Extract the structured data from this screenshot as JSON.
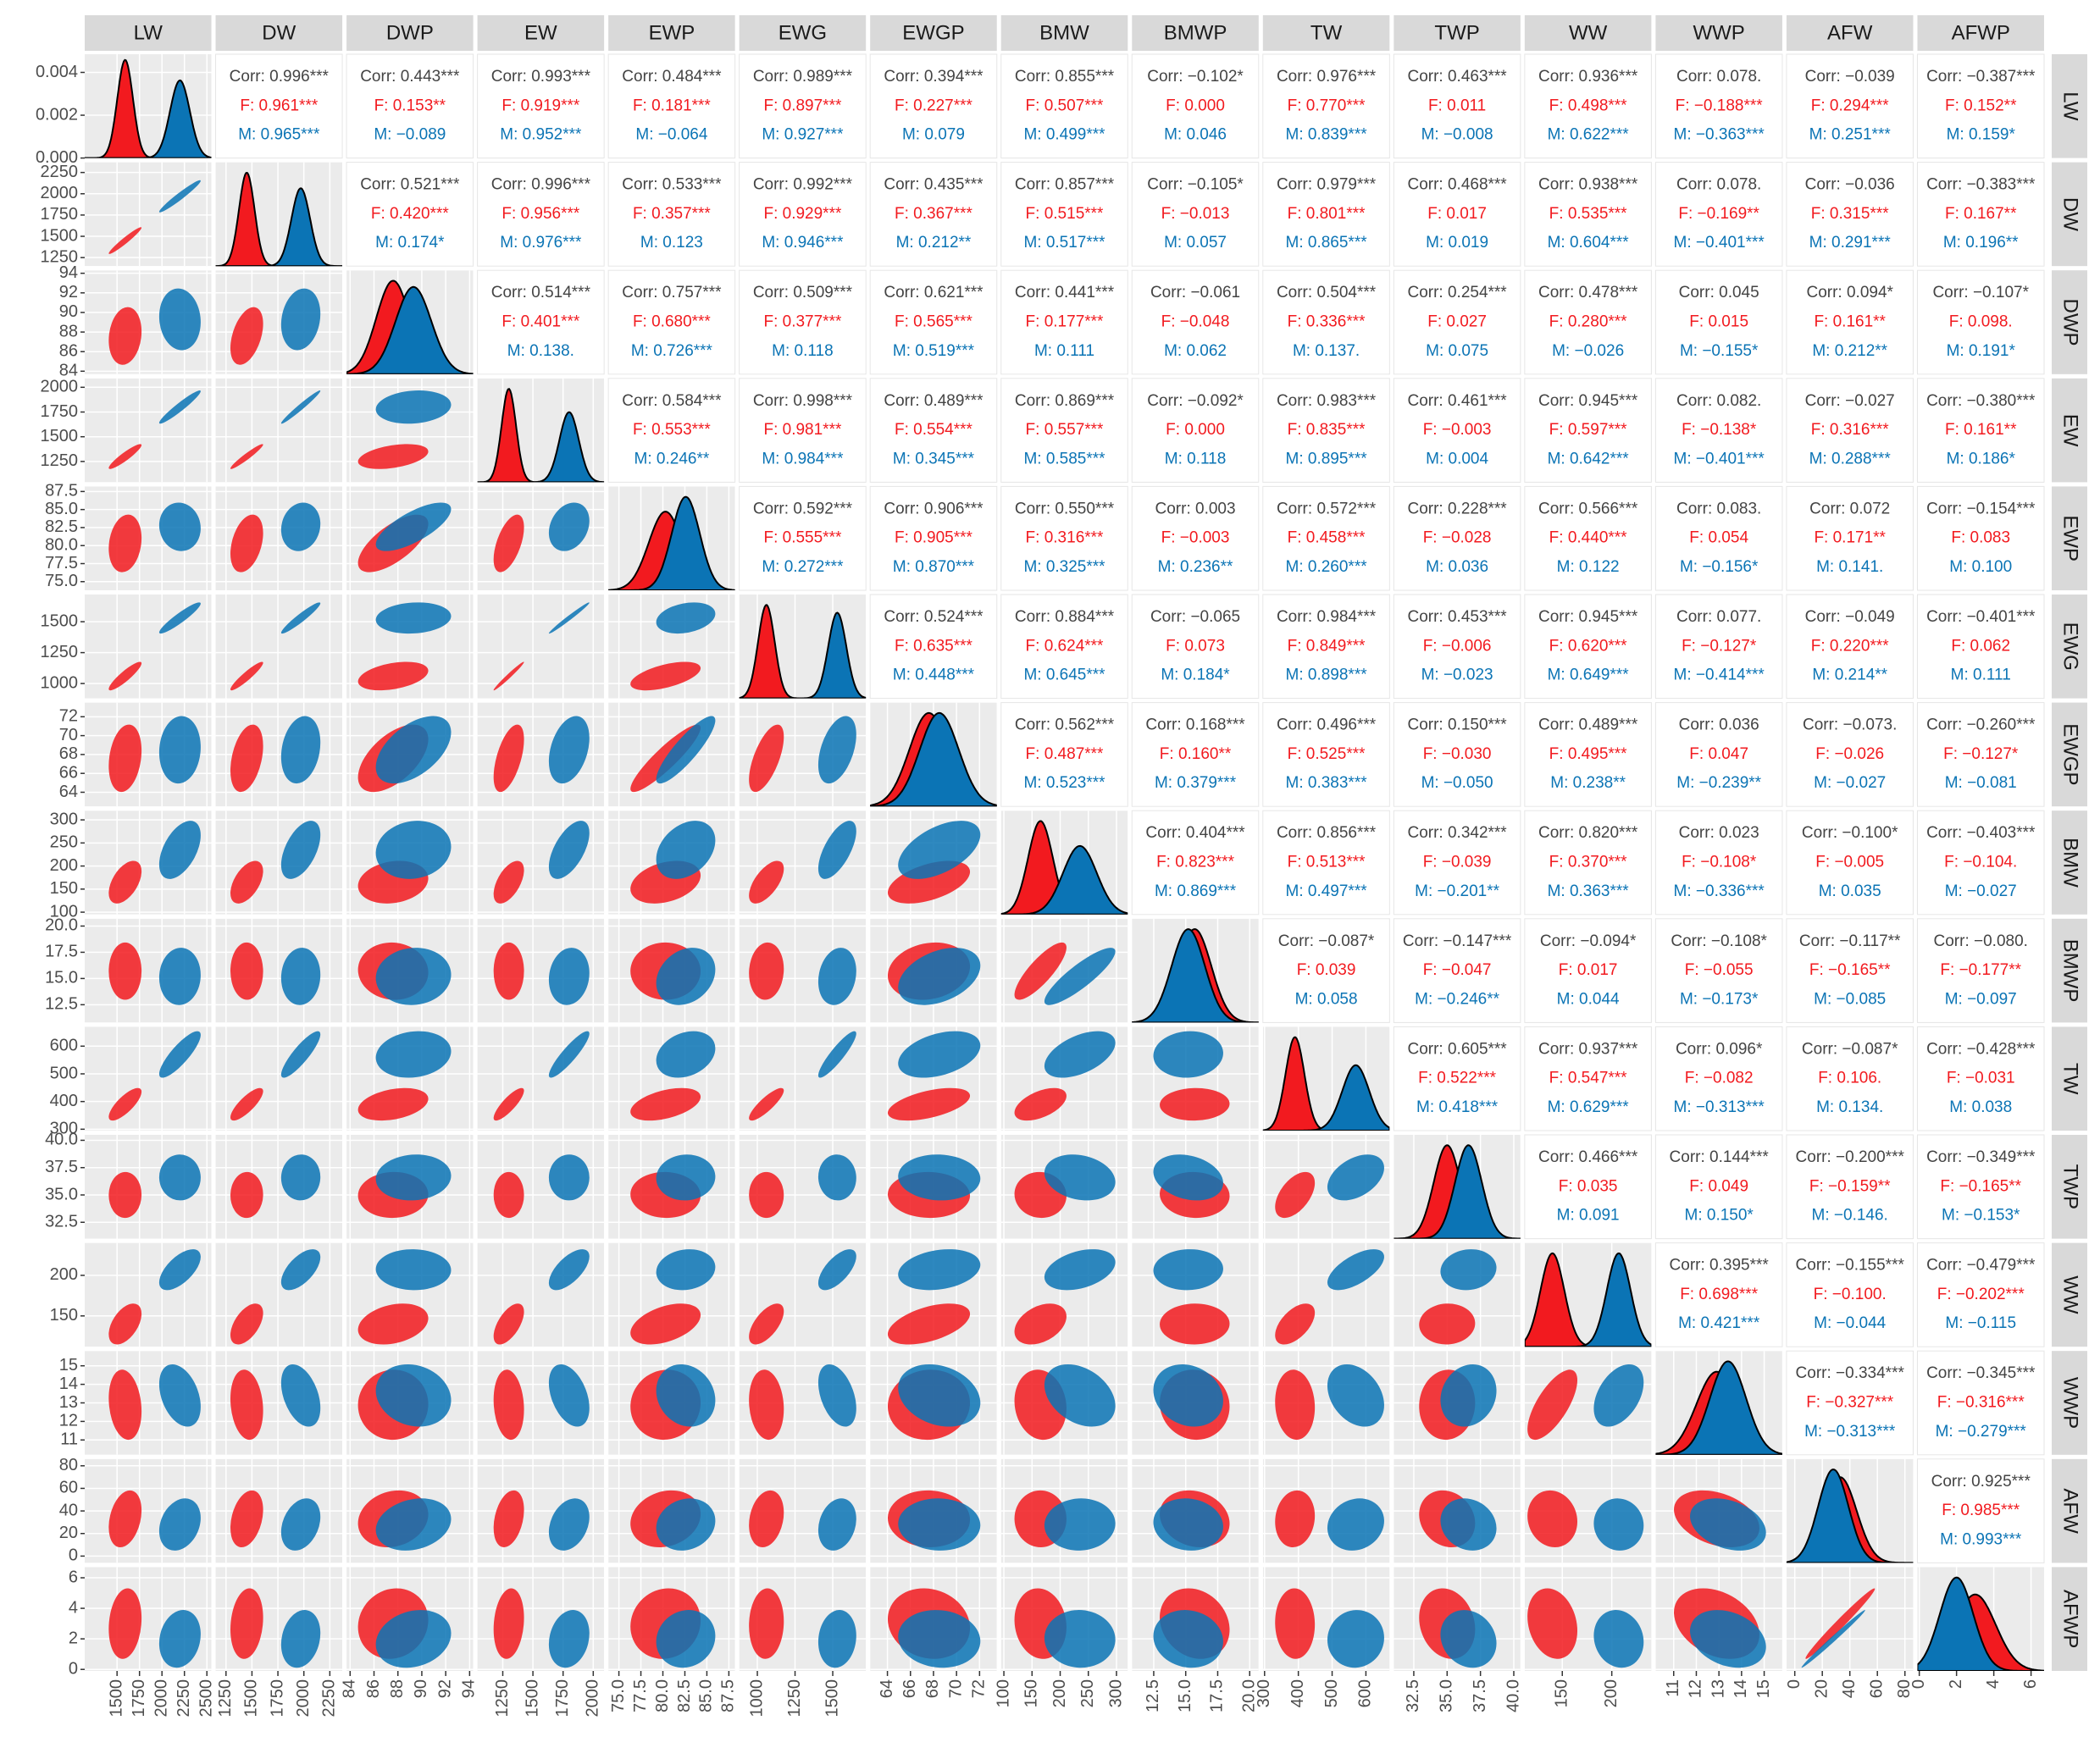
{
  "chart_data": {
    "type": "scatter-matrix",
    "colors": {
      "female": "#f21a1f",
      "male": "#0b74b5"
    },
    "density_lim": [
      0,
      0.00485
    ],
    "density_ticks": [
      {
        "value": 0,
        "label": "0.000"
      },
      {
        "value": 0.002,
        "label": "0.002"
      },
      {
        "value": 0.004,
        "label": "0.004"
      }
    ],
    "variables": [
      {
        "name": "LW",
        "lim": [
          1140,
          2550
        ],
        "ticks": [
          1500,
          1750,
          2000,
          2250,
          2500
        ],
        "female": {
          "mean": 1590,
          "sd": 87
        },
        "male": {
          "mean": 2200,
          "sd": 110
        }
      },
      {
        "name": "DW",
        "lim": [
          1150,
          2370
        ],
        "ticks": [
          1250,
          1500,
          1750,
          2000,
          2250
        ],
        "female": {
          "mean": 1450,
          "sd": 75
        },
        "male": {
          "mean": 1970,
          "sd": 90
        }
      },
      {
        "name": "DWP",
        "lim": [
          83.7,
          94.3
        ],
        "ticks": [
          84,
          86,
          88,
          90,
          92,
          94
        ],
        "female": {
          "mean": 87.6,
          "sd": 1.4
        },
        "male": {
          "mean": 89.3,
          "sd": 1.5
        }
      },
      {
        "name": "EW",
        "lim": [
          1040,
          2090
        ],
        "ticks": [
          1250,
          1500,
          1750,
          2000
        ],
        "female": {
          "mean": 1300,
          "sd": 60
        },
        "male": {
          "mean": 1800,
          "sd": 80
        }
      },
      {
        "name": "EWP",
        "lim": [
          73.8,
          88.2
        ],
        "ticks": [
          {
            "value": 75,
            "label": "75.0"
          },
          77.5,
          {
            "value": 80,
            "label": "80.0"
          },
          82.5,
          {
            "value": 85,
            "label": "85.0"
          },
          87.5
        ],
        "female": {
          "mean": 80.3,
          "sd": 1.9
        },
        "male": {
          "mean": 82.6,
          "sd": 1.6
        }
      },
      {
        "name": "EWG",
        "lim": [
          880,
          1720
        ],
        "ticks": [
          1000,
          1250,
          1500
        ],
        "female": {
          "mean": 1060,
          "sd": 55
        },
        "male": {
          "mean": 1530,
          "sd": 60
        }
      },
      {
        "name": "EWGP",
        "lim": [
          62.5,
          73.5
        ],
        "ticks": [
          64,
          66,
          68,
          70,
          72
        ],
        "female": {
          "mean": 67.6,
          "sd": 1.7
        },
        "male": {
          "mean": 68.5,
          "sd": 1.7
        }
      },
      {
        "name": "BMW",
        "lim": [
          95,
          320
        ],
        "ticks": [
          100,
          150,
          200,
          250,
          300
        ],
        "female": {
          "mean": 165,
          "sd": 22
        },
        "male": {
          "mean": 235,
          "sd": 30
        }
      },
      {
        "name": "BMWP",
        "lim": [
          10.8,
          20.7
        ],
        "ticks": [
          12.5,
          {
            "value": 15,
            "label": "15.0"
          },
          17.5,
          {
            "value": 20,
            "label": "20.0"
          }
        ],
        "female": {
          "mean": 15.7,
          "sd": 1.3
        },
        "male": {
          "mean": 15.2,
          "sd": 1.3
        }
      },
      {
        "name": "TW",
        "lim": [
          295,
          670
        ],
        "ticks": [
          300,
          400,
          500,
          600
        ],
        "female": {
          "mean": 390,
          "sd": 28
        },
        "male": {
          "mean": 570,
          "sd": 40
        }
      },
      {
        "name": "TWP",
        "lim": [
          31,
          40.5
        ],
        "ticks": [
          32.5,
          {
            "value": 35,
            "label": "35.0"
          },
          37.5,
          {
            "value": 40,
            "label": "40.0"
          }
        ],
        "female": {
          "mean": 35.0,
          "sd": 1.0
        },
        "male": {
          "mean": 36.6,
          "sd": 1.0
        }
      },
      {
        "name": "WW",
        "lim": [
          112,
          240
        ],
        "ticks": [
          150,
          200
        ],
        "female": {
          "mean": 140,
          "sd": 12
        },
        "male": {
          "mean": 207,
          "sd": 12
        }
      },
      {
        "name": "WWP",
        "lim": [
          10.2,
          15.8
        ],
        "ticks": [
          11,
          12,
          13,
          14,
          15
        ],
        "female": {
          "mean": 12.9,
          "sd": 0.9
        },
        "male": {
          "mean": 13.4,
          "sd": 0.8
        }
      },
      {
        "name": "AFW",
        "lim": [
          -6,
          86
        ],
        "ticks": [
          0,
          20,
          40,
          60,
          80
        ],
        "female": {
          "mean": 33,
          "sd": 12
        },
        "male": {
          "mean": 28,
          "sd": 11
        }
      },
      {
        "name": "AFWP",
        "lim": [
          -0.1,
          6.7
        ],
        "ticks": [
          0,
          2,
          4,
          6
        ],
        "female": {
          "mean": 3.0,
          "sd": 1.1
        },
        "male": {
          "mean": 2.0,
          "sd": 0.9
        }
      }
    ],
    "upper": [
      [
        [
          "Corr: 0.996***",
          "F: 0.961***",
          "M: 0.965***"
        ],
        [
          "Corr: 0.443***",
          "F: 0.153**",
          "M: −0.089"
        ],
        [
          "Corr: 0.993***",
          "F: 0.919***",
          "M: 0.952***"
        ],
        [
          "Corr: 0.484***",
          "F: 0.181***",
          "M: −0.064"
        ],
        [
          "Corr: 0.989***",
          "F: 0.897***",
          "M: 0.927***"
        ],
        [
          "Corr: 0.394***",
          "F: 0.227***",
          "M: 0.079"
        ],
        [
          "Corr: 0.855***",
          "F: 0.507***",
          "M: 0.499***"
        ],
        [
          "Corr: −0.102*",
          "F: 0.000",
          "M: 0.046"
        ],
        [
          "Corr: 0.976***",
          "F: 0.770***",
          "M: 0.839***"
        ],
        [
          "Corr: 0.463***",
          "F: 0.011",
          "M: −0.008"
        ],
        [
          "Corr: 0.936***",
          "F: 0.498***",
          "M: 0.622***"
        ],
        [
          "Corr: 0.078.",
          "F: −0.188***",
          "M: −0.363***"
        ],
        [
          "Corr: −0.039",
          "F: 0.294***",
          "M: 0.251***"
        ],
        [
          "Corr: −0.387***",
          "F: 0.152**",
          "M: 0.159*"
        ]
      ],
      [
        [
          "Corr: 0.521***",
          "F: 0.420***",
          "M: 0.174*"
        ],
        [
          "Corr: 0.996***",
          "F: 0.956***",
          "M: 0.976***"
        ],
        [
          "Corr: 0.533***",
          "F: 0.357***",
          "M: 0.123"
        ],
        [
          "Corr: 0.992***",
          "F: 0.929***",
          "M: 0.946***"
        ],
        [
          "Corr: 0.435***",
          "F: 0.367***",
          "M: 0.212**"
        ],
        [
          "Corr: 0.857***",
          "F: 0.515***",
          "M: 0.517***"
        ],
        [
          "Corr: −0.105*",
          "F: −0.013",
          "M: 0.057"
        ],
        [
          "Corr: 0.979***",
          "F: 0.801***",
          "M: 0.865***"
        ],
        [
          "Corr: 0.468***",
          "F: 0.017",
          "M: 0.019"
        ],
        [
          "Corr: 0.938***",
          "F: 0.535***",
          "M: 0.604***"
        ],
        [
          "Corr: 0.078.",
          "F: −0.169**",
          "M: −0.401***"
        ],
        [
          "Corr: −0.036",
          "F: 0.315***",
          "M: 0.291***"
        ],
        [
          "Corr: −0.383***",
          "F: 0.167**",
          "M: 0.196**"
        ]
      ],
      [
        [
          "Corr: 0.514***",
          "F: 0.401***",
          "M: 0.138."
        ],
        [
          "Corr: 0.757***",
          "F: 0.680***",
          "M: 0.726***"
        ],
        [
          "Corr: 0.509***",
          "F: 0.377***",
          "M: 0.118"
        ],
        [
          "Corr: 0.621***",
          "F: 0.565***",
          "M: 0.519***"
        ],
        [
          "Corr: 0.441***",
          "F: 0.177***",
          "M: 0.111"
        ],
        [
          "Corr: −0.061",
          "F: −0.048",
          "M: 0.062"
        ],
        [
          "Corr: 0.504***",
          "F: 0.336***",
          "M: 0.137."
        ],
        [
          "Corr: 0.254***",
          "F: 0.027",
          "M: 0.075"
        ],
        [
          "Corr: 0.478***",
          "F: 0.280***",
          "M: −0.026"
        ],
        [
          "Corr: 0.045",
          "F: 0.015",
          "M: −0.155*"
        ],
        [
          "Corr: 0.094*",
          "F: 0.161**",
          "M: 0.212**"
        ],
        [
          "Corr: −0.107*",
          "F: 0.098.",
          "M: 0.191*"
        ]
      ],
      [
        [
          "Corr: 0.584***",
          "F: 0.553***",
          "M: 0.246**"
        ],
        [
          "Corr: 0.998***",
          "F: 0.981***",
          "M: 0.984***"
        ],
        [
          "Corr: 0.489***",
          "F: 0.554***",
          "M: 0.345***"
        ],
        [
          "Corr: 0.869***",
          "F: 0.557***",
          "M: 0.585***"
        ],
        [
          "Corr: −0.092*",
          "F: 0.000",
          "M: 0.118"
        ],
        [
          "Corr: 0.983***",
          "F: 0.835***",
          "M: 0.895***"
        ],
        [
          "Corr: 0.461***",
          "F: −0.003",
          "M: 0.004"
        ],
        [
          "Corr: 0.945***",
          "F: 0.597***",
          "M: 0.642***"
        ],
        [
          "Corr: 0.082.",
          "F: −0.138*",
          "M: −0.401***"
        ],
        [
          "Corr: −0.027",
          "F: 0.316***",
          "M: 0.288***"
        ],
        [
          "Corr: −0.380***",
          "F: 0.161**",
          "M: 0.186*"
        ]
      ],
      [
        [
          "Corr: 0.592***",
          "F: 0.555***",
          "M: 0.272***"
        ],
        [
          "Corr: 0.906***",
          "F: 0.905***",
          "M: 0.870***"
        ],
        [
          "Corr: 0.550***",
          "F: 0.316***",
          "M: 0.325***"
        ],
        [
          "Corr: 0.003",
          "F: −0.003",
          "M: 0.236**"
        ],
        [
          "Corr: 0.572***",
          "F: 0.458***",
          "M: 0.260***"
        ],
        [
          "Corr: 0.228***",
          "F: −0.028",
          "M: 0.036"
        ],
        [
          "Corr: 0.566***",
          "F: 0.440***",
          "M: 0.122"
        ],
        [
          "Corr: 0.083.",
          "F: 0.054",
          "M: −0.156*"
        ],
        [
          "Corr: 0.072",
          "F: 0.171**",
          "M: 0.141."
        ],
        [
          "Corr: −0.154***",
          "F: 0.083",
          "M: 0.100"
        ]
      ],
      [
        [
          "Corr: 0.524***",
          "F: 0.635***",
          "M: 0.448***"
        ],
        [
          "Corr: 0.884***",
          "F: 0.624***",
          "M: 0.645***"
        ],
        [
          "Corr: −0.065",
          "F: 0.073",
          "M: 0.184*"
        ],
        [
          "Corr: 0.984***",
          "F: 0.849***",
          "M: 0.898***"
        ],
        [
          "Corr: 0.453***",
          "F: −0.006",
          "M: −0.023"
        ],
        [
          "Corr: 0.945***",
          "F: 0.620***",
          "M: 0.649***"
        ],
        [
          "Corr: 0.077.",
          "F: −0.127*",
          "M: −0.414***"
        ],
        [
          "Corr: −0.049",
          "F: 0.220***",
          "M: 0.214**"
        ],
        [
          "Corr: −0.401***",
          "F: 0.062",
          "M: 0.111"
        ]
      ],
      [
        [
          "Corr: 0.562***",
          "F: 0.487***",
          "M: 0.523***"
        ],
        [
          "Corr: 0.168***",
          "F: 0.160**",
          "M: 0.379***"
        ],
        [
          "Corr: 0.496***",
          "F: 0.525***",
          "M: 0.383***"
        ],
        [
          "Corr: 0.150***",
          "F: −0.030",
          "M: −0.050"
        ],
        [
          "Corr: 0.489***",
          "F: 0.495***",
          "M: 0.238**"
        ],
        [
          "Corr: 0.036",
          "F: 0.047",
          "M: −0.239**"
        ],
        [
          "Corr: −0.073.",
          "F: −0.026",
          "M: −0.027"
        ],
        [
          "Corr: −0.260***",
          "F: −0.127*",
          "M: −0.081"
        ]
      ],
      [
        [
          "Corr: 0.404***",
          "F: 0.823***",
          "M: 0.869***"
        ],
        [
          "Corr: 0.856***",
          "F: 0.513***",
          "M: 0.497***"
        ],
        [
          "Corr: 0.342***",
          "F: −0.039",
          "M: −0.201**"
        ],
        [
          "Corr: 0.820***",
          "F: 0.370***",
          "M: 0.363***"
        ],
        [
          "Corr: 0.023",
          "F: −0.108*",
          "M: −0.336***"
        ],
        [
          "Corr: −0.100*",
          "F: −0.005",
          "M: 0.035"
        ],
        [
          "Corr: −0.403***",
          "F: −0.104.",
          "M: −0.027"
        ]
      ],
      [
        [
          "Corr: −0.087*",
          "F: 0.039",
          "M: 0.058"
        ],
        [
          "Corr: −0.147***",
          "F: −0.047",
          "M: −0.246**"
        ],
        [
          "Corr: −0.094*",
          "F: 0.017",
          "M: 0.044"
        ],
        [
          "Corr: −0.108*",
          "F: −0.055",
          "M: −0.173*"
        ],
        [
          "Corr: −0.117**",
          "F: −0.165**",
          "M: −0.085"
        ],
        [
          "Corr: −0.080.",
          "F: −0.177**",
          "M: −0.097"
        ]
      ],
      [
        [
          "Corr: 0.605***",
          "F: 0.522***",
          "M: 0.418***"
        ],
        [
          "Corr: 0.937***",
          "F: 0.547***",
          "M: 0.629***"
        ],
        [
          "Corr: 0.096*",
          "F: −0.082",
          "M: −0.313***"
        ],
        [
          "Corr: −0.087*",
          "F: 0.106.",
          "M: 0.134."
        ],
        [
          "Corr: −0.428***",
          "F: −0.031",
          "M: 0.038"
        ]
      ],
      [
        [
          "Corr: 0.466***",
          "F: 0.035",
          "M: 0.091"
        ],
        [
          "Corr: 0.144***",
          "F: 0.049",
          "M: 0.150*"
        ],
        [
          "Corr: −0.200***",
          "F: −0.159**",
          "M: −0.146."
        ],
        [
          "Corr: −0.349***",
          "F: −0.165**",
          "M: −0.153*"
        ]
      ],
      [
        [
          "Corr: 0.395***",
          "F: 0.698***",
          "M: 0.421***"
        ],
        [
          "Corr: −0.155***",
          "F: −0.100.",
          "M: −0.044"
        ],
        [
          "Corr: −0.479***",
          "F: −0.202***",
          "M: −0.115"
        ]
      ],
      [
        [
          "Corr: −0.334***",
          "F: −0.327***",
          "M: −0.313***"
        ],
        [
          "Corr: −0.345***",
          "F: −0.316***",
          "M: −0.279***"
        ]
      ],
      [
        [
          "Corr: 0.925***",
          "F: 0.985***",
          "M: 0.993***"
        ]
      ]
    ]
  }
}
